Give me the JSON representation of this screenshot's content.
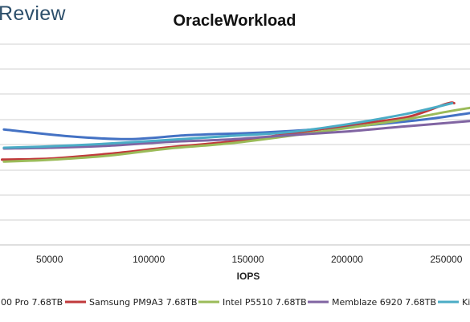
{
  "brand": "Review",
  "chart_data": {
    "type": "line",
    "title": "OracleWorkload",
    "xlabel": "IOPS",
    "ylabel": "",
    "xlim": [
      25000,
      262000
    ],
    "ylim": [
      0,
      1
    ],
    "x_ticks": [
      50000,
      100000,
      150000,
      200000,
      250000
    ],
    "x_tick_labels": [
      "50000",
      "100000",
      "150000",
      "200000",
      "250000"
    ],
    "y_tick_labels": [],
    "grid": true,
    "legend_position": "bottom",
    "series": [
      {
        "name": "00 Pro 7.68TB",
        "color": "#4472c4",
        "x": [
          27000,
          60000,
          90000,
          120000,
          150000,
          180000,
          210000,
          240000,
          262000
        ],
        "y": [
          0.575,
          0.541,
          0.527,
          0.547,
          0.557,
          0.573,
          0.596,
          0.626,
          0.657
        ]
      },
      {
        "name": "Samsung PM9A3 7.68TB",
        "color": "#c0393b",
        "x": [
          26000,
          50000,
          80000,
          110000,
          140000,
          170000,
          200000,
          230000,
          250000,
          254000
        ],
        "y": [
          0.425,
          0.43,
          0.454,
          0.486,
          0.513,
          0.552,
          0.596,
          0.636,
          0.703,
          0.706
        ]
      },
      {
        "name": "Intel P5510 7.68TB",
        "color": "#9bbb59",
        "x": [
          27000,
          50000,
          80000,
          110000,
          140000,
          170000,
          200000,
          230000,
          250000,
          262000
        ],
        "y": [
          0.415,
          0.424,
          0.445,
          0.48,
          0.505,
          0.542,
          0.582,
          0.626,
          0.663,
          0.683
        ]
      },
      {
        "name": "Memblaze 6920 7.68TB",
        "color": "#8064a2",
        "x": [
          27000,
          50000,
          80000,
          110000,
          140000,
          170000,
          200000,
          230000,
          262000
        ],
        "y": [
          0.48,
          0.484,
          0.494,
          0.513,
          0.525,
          0.546,
          0.565,
          0.591,
          0.617
        ]
      },
      {
        "name": "Ki",
        "color": "#4bacc6",
        "x": [
          27000,
          50000,
          80000,
          110000,
          140000,
          170000,
          200000,
          230000,
          253000
        ],
        "y": [
          0.484,
          0.491,
          0.505,
          0.523,
          0.542,
          0.561,
          0.601,
          0.653,
          0.706
        ]
      }
    ]
  }
}
